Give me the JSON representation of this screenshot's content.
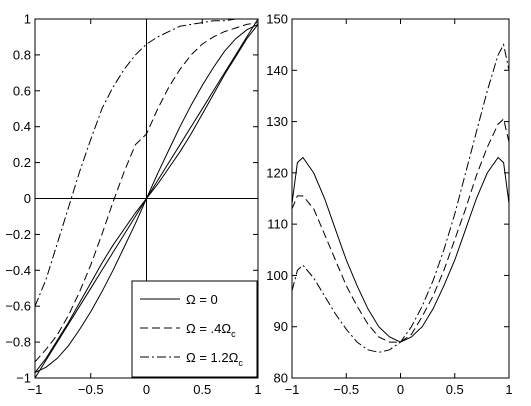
{
  "chart_data": [
    {
      "type": "line",
      "title": "",
      "xlabel": "",
      "ylabel": "",
      "xlim": [
        -1,
        1
      ],
      "ylim": [
        -1,
        1
      ],
      "x_ticks": [
        "-1",
        "-0.5",
        "0",
        "0.5",
        "1"
      ],
      "y_ticks": [
        "-1",
        "-0.8",
        "-0.6",
        "-0.4",
        "-0.2",
        "0",
        "0.2",
        "0.4",
        "0.6",
        "0.8",
        "1"
      ],
      "grid": false,
      "reference_lines": {
        "x": 0,
        "y": 0
      },
      "legend_position": "bottom-right",
      "x": [
        -1,
        -0.9,
        -0.8,
        -0.7,
        -0.6,
        -0.5,
        -0.4,
        -0.3,
        -0.2,
        -0.1,
        0,
        0.1,
        0.2,
        0.3,
        0.4,
        0.5,
        0.6,
        0.7,
        0.8,
        0.9,
        1
      ],
      "series": [
        {
          "style": "solid",
          "values": [
            -0.97,
            -0.94,
            -0.89,
            -0.82,
            -0.73,
            -0.63,
            -0.52,
            -0.4,
            -0.27,
            -0.14,
            0,
            0.14,
            0.27,
            0.4,
            0.52,
            0.63,
            0.73,
            0.82,
            0.89,
            0.94,
            0.97
          ]
        },
        {
          "style": "solid",
          "values": [
            -1,
            -0.9,
            -0.8,
            -0.7,
            -0.6,
            -0.5,
            -0.4,
            -0.3,
            -0.2,
            -0.1,
            0,
            0.1,
            0.2,
            0.3,
            0.4,
            0.5,
            0.6,
            0.7,
            0.8,
            0.9,
            1
          ]
        },
        {
          "name": "Ω = 0",
          "style": "solid",
          "values": [
            -0.97,
            -0.89,
            -0.79,
            -0.69,
            -0.58,
            -0.47,
            -0.36,
            -0.26,
            -0.17,
            -0.08,
            0,
            0.08,
            0.17,
            0.26,
            0.36,
            0.47,
            0.58,
            0.69,
            0.79,
            0.89,
            0.97
          ]
        },
        {
          "name": "Ω = .4Ω_c",
          "style": "dashed",
          "values": [
            -0.91,
            -0.84,
            -0.76,
            -0.65,
            -0.52,
            -0.37,
            -0.2,
            -0.02,
            0.15,
            0.3,
            0.36,
            0.5,
            0.62,
            0.72,
            0.8,
            0.86,
            0.9,
            0.93,
            0.95,
            0.97,
            0.98
          ]
        },
        {
          "name": "Ω = 1.2Ω_c",
          "style": "dashdot",
          "values": [
            -0.6,
            -0.45,
            -0.25,
            -0.05,
            0.15,
            0.33,
            0.5,
            0.62,
            0.72,
            0.8,
            0.86,
            0.9,
            0.93,
            0.96,
            0.97,
            0.98,
            0.99,
            0.99,
            1,
            1,
            1
          ]
        }
      ]
    },
    {
      "type": "line",
      "title": "",
      "xlabel": "",
      "ylabel": "",
      "xlim": [
        -1,
        1
      ],
      "ylim": [
        80,
        150
      ],
      "x_ticks": [
        "-1",
        "-0.5",
        "0",
        "0.5",
        "1"
      ],
      "y_ticks": [
        "80",
        "90",
        "100",
        "110",
        "120",
        "130",
        "140",
        "150"
      ],
      "grid": false,
      "x": [
        -1,
        -0.95,
        -0.9,
        -0.8,
        -0.7,
        -0.6,
        -0.5,
        -0.4,
        -0.3,
        -0.2,
        -0.1,
        0,
        0.1,
        0.2,
        0.3,
        0.4,
        0.5,
        0.6,
        0.7,
        0.8,
        0.9,
        0.95,
        1
      ],
      "series": [
        {
          "name": "Ω = 0",
          "style": "solid",
          "values": [
            114,
            122,
            123,
            120,
            115,
            109,
            103,
            98,
            93.5,
            90,
            88,
            87,
            88,
            90,
            93.5,
            98,
            103,
            109,
            115,
            120,
            123,
            122,
            114
          ]
        },
        {
          "name": "Ω = .4Ω_c",
          "style": "dashed",
          "values": [
            113,
            115.5,
            115.5,
            113,
            108,
            103,
            98,
            94,
            90.5,
            88,
            87,
            87,
            88.5,
            92,
            96,
            101,
            107,
            113,
            119.5,
            125,
            129.5,
            130.5,
            126
          ]
        },
        {
          "name": "Ω = 1.2Ω_c",
          "style": "dashdot",
          "values": [
            97,
            101,
            102,
            99.5,
            96,
            92.5,
            89.5,
            87,
            85.5,
            85,
            85.5,
            87,
            90,
            94,
            99,
            105,
            112,
            120,
            128,
            136,
            143,
            145,
            140
          ]
        }
      ]
    }
  ]
}
